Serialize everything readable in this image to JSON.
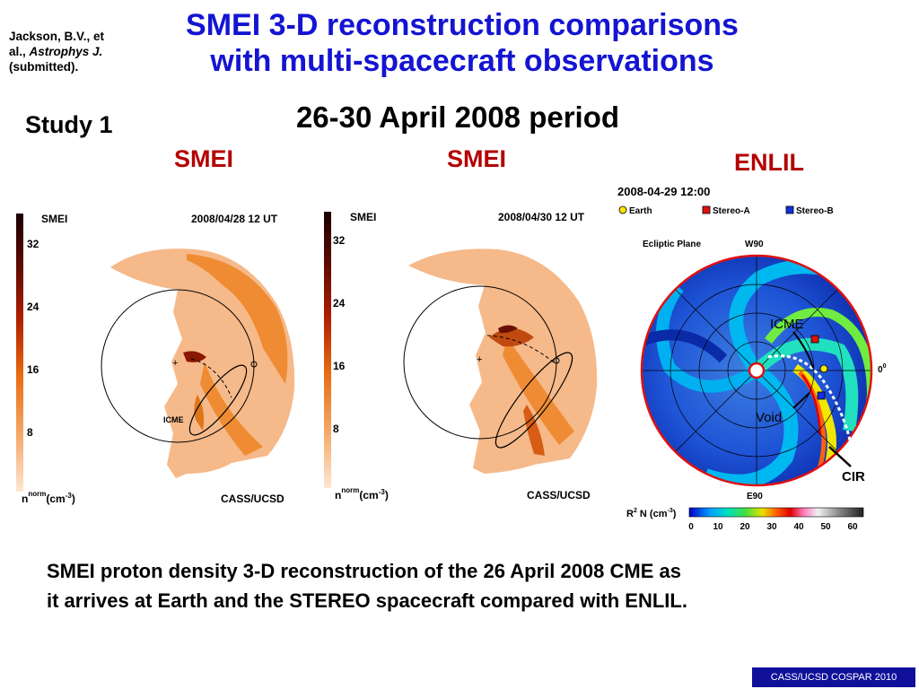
{
  "reference": {
    "line1": "Jackson, B.V., et",
    "line2a": "al., ",
    "journal": "Astrophys J.",
    "line3": "(submitted)."
  },
  "title": {
    "line1": "SMEI 3-D reconstruction comparisons",
    "line2": "with multi-spacecraft observations"
  },
  "period": "26-30 April 2008 period",
  "study": "Study 1",
  "panel_labels": {
    "smei_left": "SMEI",
    "smei_right": "SMEI",
    "enlil": "ENLIL"
  },
  "smei_panels": [
    {
      "product": "SMEI",
      "date": "2008/04/28 12 UT",
      "credit": "CASS/UCSD",
      "feature_label": "ICME",
      "colorbar_ticks": [
        "32",
        "24",
        "16",
        "8"
      ],
      "unit_base": "n",
      "unit_sup": "norm",
      "unit_text": "(cm",
      "unit_exp": "-3",
      "unit_close": ")"
    },
    {
      "product": "SMEI",
      "date": "2008/04/30 12 UT",
      "credit": "CASS/UCSD",
      "feature_label": "",
      "colorbar_ticks": [
        "32",
        "24",
        "16",
        "8"
      ],
      "unit_base": "n",
      "unit_sup": "norm",
      "unit_text": "(cm",
      "unit_exp": "-3",
      "unit_close": ")"
    }
  ],
  "enlil": {
    "datetime": "2008-04-29 12:00",
    "legend": [
      {
        "label": "Earth",
        "color": "#ffe600"
      },
      {
        "label": "Stereo-A",
        "color": "#e01010"
      },
      {
        "label": "Stereo-B",
        "color": "#1030e0"
      }
    ],
    "plane": "Ecliptic Plane",
    "top_label": "W90",
    "bottom_label": "E90",
    "right_label": "0",
    "right_sup": "0",
    "annotations": {
      "icme": "ICME",
      "void": "Void",
      "cir": "CIR"
    },
    "colorbar_label_r": "R",
    "colorbar_label_sup": "2",
    "colorbar_label_n": " N (cm",
    "colorbar_label_exp": "-3",
    "colorbar_label_close": ")",
    "colorbar_ticks": [
      "0",
      "10",
      "20",
      "30",
      "40",
      "50",
      "60"
    ]
  },
  "caption": {
    "line1": "SMEI proton density 3-D reconstruction of the 26 April 2008 CME as",
    "line2": "it arrives at Earth and the STEREO spacecraft compared with ENLIL."
  },
  "footer": "CASS/UCSD COSPAR 2010"
}
